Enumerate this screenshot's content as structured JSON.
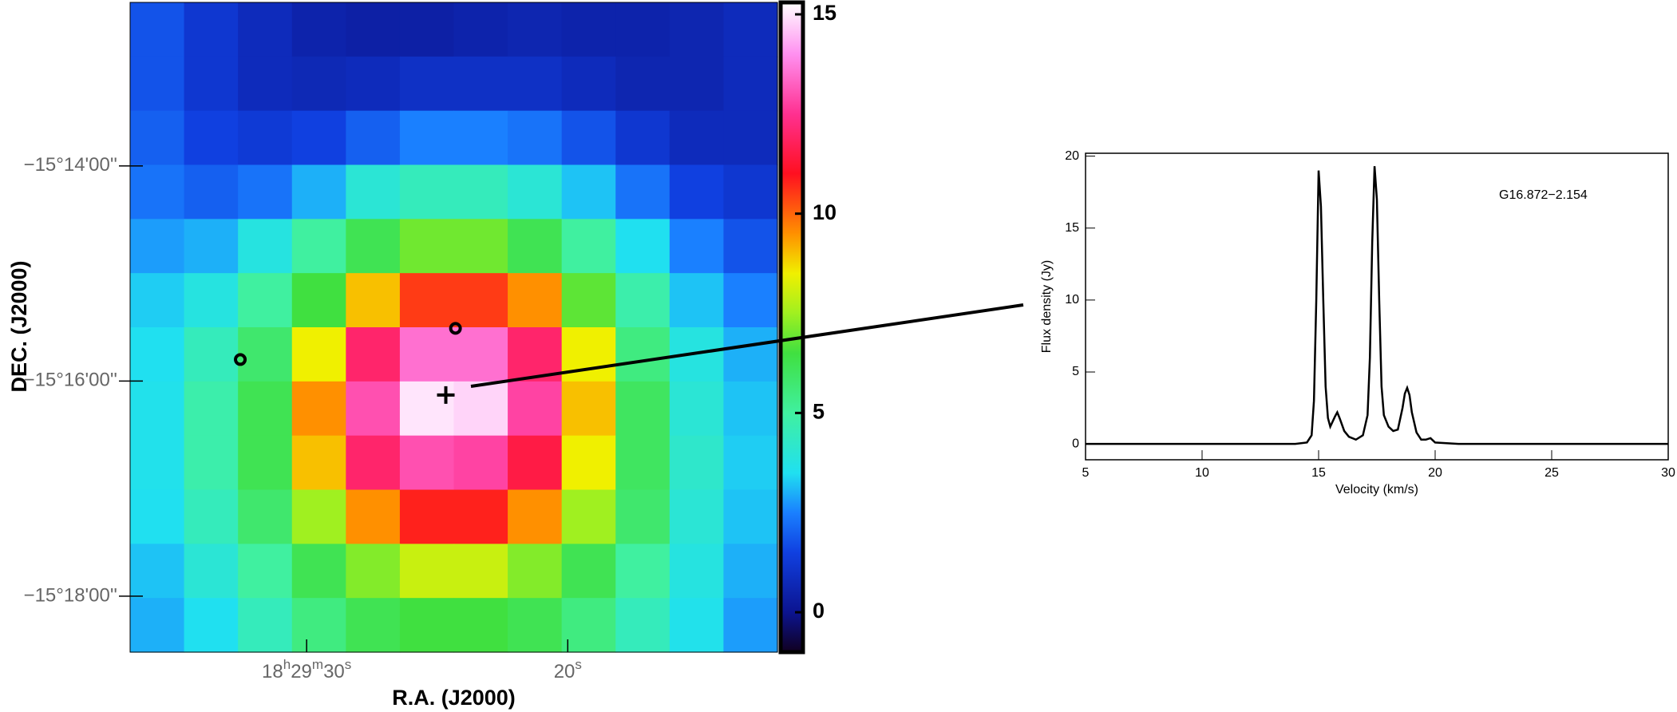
{
  "chart_data": [
    {
      "type": "heatmap",
      "xlabel": "R.A. (J2000)",
      "ylabel": "DEC. (J2000)",
      "xlim": [
        36.76,
        11.97
      ],
      "ylim": [
        -918.52,
        -912.48
      ],
      "xticks": [
        {
          "value": 30,
          "label": "18h29m30s"
        },
        {
          "value": 20,
          "label": "20s"
        }
      ],
      "yticks": [
        {
          "value": -914,
          "label": "−15°14'00''"
        },
        {
          "value": -916,
          "label": "−15°16'00''"
        },
        {
          "value": -918,
          "label": "−15°18'00''"
        }
      ],
      "zlim": [
        -1,
        15.3
      ],
      "zticks": [
        0,
        5,
        10,
        15
      ],
      "colormap": [
        [
          -1,
          "#100020"
        ],
        [
          0,
          "#0c1490"
        ],
        [
          1.5,
          "#1040e0"
        ],
        [
          2.5,
          "#1a80ff"
        ],
        [
          3.5,
          "#20e0f0"
        ],
        [
          5,
          "#40f0a0"
        ],
        [
          6.5,
          "#40e040"
        ],
        [
          7.5,
          "#a0f020"
        ],
        [
          8.5,
          "#f0f000"
        ],
        [
          9.5,
          "#ff9000"
        ],
        [
          11,
          "#ff1020"
        ],
        [
          12.5,
          "#ff3090"
        ],
        [
          14,
          "#ff90f0"
        ],
        [
          15.3,
          "#ffffff"
        ]
      ],
      "z": [
        [
          1.8,
          1.2,
          0.8,
          0.5,
          0.4,
          0.4,
          0.5,
          0.6,
          0.5,
          0.5,
          0.6,
          0.8
        ],
        [
          1.8,
          1.2,
          0.8,
          0.7,
          0.8,
          1.0,
          1.0,
          1.0,
          0.8,
          0.6,
          0.6,
          0.8
        ],
        [
          2.0,
          1.5,
          1.3,
          1.5,
          2.0,
          2.5,
          2.5,
          2.3,
          1.8,
          1.2,
          0.8,
          0.8
        ],
        [
          2.3,
          2.0,
          2.3,
          3.0,
          4.0,
          4.5,
          4.5,
          4.0,
          3.2,
          2.3,
          1.5,
          1.2
        ],
        [
          2.8,
          3.0,
          3.8,
          5.0,
          6.2,
          7.0,
          7.0,
          6.2,
          5.0,
          3.5,
          2.5,
          1.8
        ],
        [
          3.3,
          3.8,
          5.0,
          6.5,
          9.0,
          10.5,
          10.5,
          9.5,
          6.8,
          4.8,
          3.2,
          2.5
        ],
        [
          3.5,
          4.5,
          5.8,
          8.5,
          12.0,
          13.5,
          13.5,
          12.0,
          8.5,
          5.5,
          3.8,
          3.0
        ],
        [
          3.6,
          4.8,
          6.2,
          9.5,
          13.0,
          15.0,
          14.8,
          12.8,
          9.0,
          6.0,
          4.0,
          3.2
        ],
        [
          3.6,
          4.8,
          6.2,
          9.0,
          12.0,
          13.0,
          12.8,
          11.5,
          8.5,
          6.0,
          4.2,
          3.3
        ],
        [
          3.5,
          4.5,
          5.8,
          7.5,
          9.5,
          10.8,
          10.8,
          9.5,
          7.5,
          5.8,
          4.0,
          3.2
        ],
        [
          3.2,
          4.0,
          5.0,
          6.2,
          7.2,
          8.0,
          8.0,
          7.2,
          6.2,
          5.0,
          3.8,
          3.0
        ],
        [
          3.0,
          3.5,
          4.5,
          5.5,
          6.2,
          6.5,
          6.5,
          6.2,
          5.5,
          4.5,
          3.6,
          2.8
        ]
      ],
      "points": [
        {
          "x": 32.54,
          "y": -915.8,
          "marker": "circle"
        },
        {
          "x": 24.3,
          "y": -915.51,
          "marker": "circle"
        },
        {
          "x": 24.67,
          "y": -916.13,
          "marker": "plus"
        }
      ]
    },
    {
      "type": "line",
      "annotation": "G16.872−2.154",
      "xlabel": "Velocity (km/s)",
      "ylabel": "Flux density (Jy)",
      "color": "#000000",
      "xlim": [
        5,
        30
      ],
      "ylim": [
        -1.1,
        20.2
      ],
      "xticks": [
        5,
        10,
        15,
        20,
        25,
        30
      ],
      "yticks": [
        0,
        5,
        10,
        15,
        20
      ],
      "x": [
        5,
        6,
        7,
        8,
        9,
        10,
        11,
        12,
        13,
        14,
        14.5,
        14.7,
        14.8,
        14.9,
        15.0,
        15.1,
        15.2,
        15.3,
        15.4,
        15.5,
        15.7,
        15.8,
        15.9,
        16.1,
        16.3,
        16.6,
        16.9,
        17.1,
        17.2,
        17.3,
        17.4,
        17.5,
        17.6,
        17.7,
        17.8,
        18.0,
        18.2,
        18.4,
        18.6,
        18.7,
        18.8,
        18.9,
        19.0,
        19.2,
        19.4,
        19.6,
        19.8,
        20,
        21,
        22,
        23,
        24,
        25,
        26,
        27,
        28,
        29,
        30
      ],
      "values": [
        0,
        0,
        0,
        0,
        0,
        0,
        0,
        0,
        0,
        0,
        0.1,
        0.6,
        3,
        10,
        19,
        16.5,
        10,
        4,
        1.8,
        1.2,
        1.9,
        2.2,
        1.8,
        0.9,
        0.5,
        0.3,
        0.6,
        2,
        6,
        14,
        19.3,
        17,
        10,
        4,
        2,
        1.2,
        0.9,
        1.0,
        2.5,
        3.5,
        3.9,
        3.4,
        2.2,
        0.8,
        0.3,
        0.3,
        0.4,
        0.1,
        0,
        0,
        0,
        0,
        0,
        0,
        0,
        0,
        0,
        0
      ]
    }
  ]
}
